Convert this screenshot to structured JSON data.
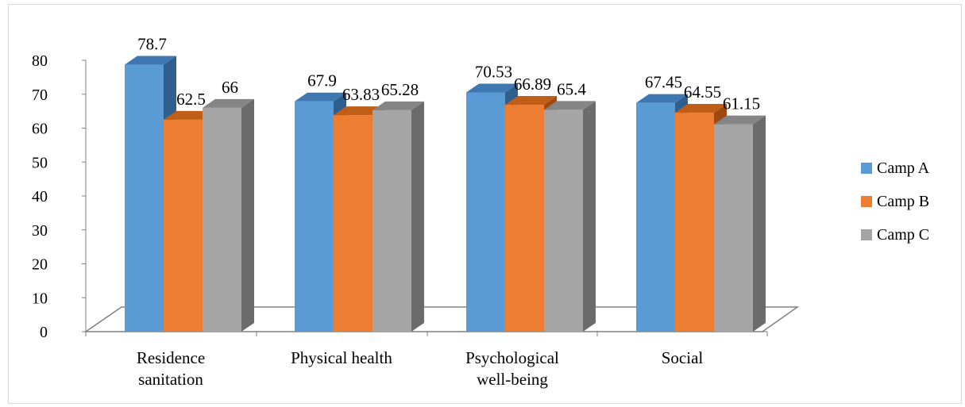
{
  "chart_data": {
    "type": "bar",
    "categories": [
      [
        "Residence",
        "sanitation"
      ],
      [
        "Physical health"
      ],
      [
        "Psychological",
        "well-being"
      ],
      [
        "Social"
      ]
    ],
    "series": [
      {
        "name": "Camp A",
        "values": [
          78.7,
          67.9,
          70.53,
          67.45
        ],
        "labels": [
          "78.7",
          "67.9",
          "70.53",
          "67.45"
        ]
      },
      {
        "name": "Camp B",
        "values": [
          62.5,
          63.83,
          66.89,
          64.55
        ],
        "labels": [
          "62.5",
          "63.83",
          "66.89",
          "64.55"
        ]
      },
      {
        "name": "Camp C",
        "values": [
          66,
          65.28,
          65.4,
          61.15
        ],
        "labels": [
          "66",
          "65.28",
          "65.4",
          "61.15"
        ]
      }
    ],
    "ylim": [
      0,
      80
    ],
    "yticks": [
      "0",
      "10",
      "20",
      "30",
      "40",
      "50",
      "60",
      "70",
      "80"
    ],
    "legend_position": "right",
    "grid": false,
    "style": "3d-clustered-column"
  },
  "colors": {
    "series_front": [
      "#5b9bd5",
      "#ed7d31",
      "#a5a5a5"
    ],
    "series_top": [
      "#3f78b0",
      "#c05d16",
      "#858585"
    ],
    "series_side": [
      "#2e5f8f",
      "#9c4a10",
      "#6b6b6b"
    ],
    "floor_stroke": "#808080",
    "axis": "#7f7f7f"
  }
}
